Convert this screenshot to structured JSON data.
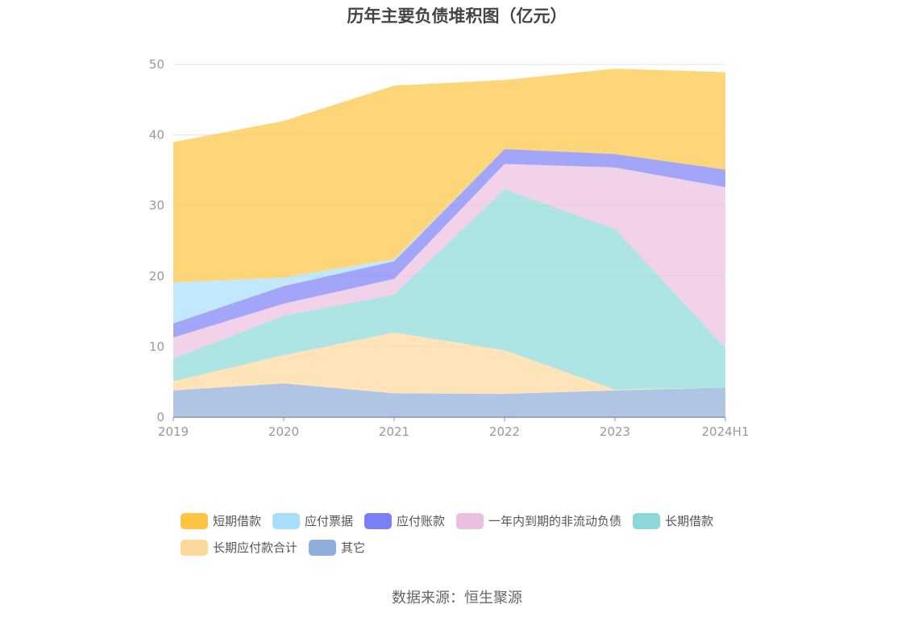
{
  "chart_data": {
    "type": "area",
    "title": "历年主要负债堆积图（亿元）",
    "categories": [
      "2019",
      "2020",
      "2021",
      "2022",
      "2023",
      "2024H1"
    ],
    "ylim": [
      0,
      50
    ],
    "yticks": [
      0,
      10,
      20,
      30,
      40,
      50
    ],
    "stacked": true,
    "grid": true,
    "legend_position": "bottom",
    "series": [
      {
        "name": "其它",
        "color": "#8eadd9",
        "values": [
          3.8,
          4.8,
          3.4,
          3.3,
          3.8,
          4.2
        ]
      },
      {
        "name": "长期应付款合计",
        "color": "#fdd89a",
        "values": [
          1.3,
          4.0,
          8.6,
          6.2,
          0.1,
          0.0
        ]
      },
      {
        "name": "长期借款",
        "color": "#8bd8d8",
        "values": [
          3.2,
          5.6,
          5.4,
          22.8,
          22.8,
          5.6
        ]
      },
      {
        "name": "一年内到期的非流动负债",
        "color": "#ebbfdf",
        "values": [
          3.0,
          1.7,
          2.2,
          3.6,
          8.7,
          22.8
        ]
      },
      {
        "name": "应付账款",
        "color": "#7b7ff5",
        "values": [
          2.0,
          2.5,
          2.5,
          2.1,
          1.9,
          2.5
        ]
      },
      {
        "name": "应付票据",
        "color": "#a8defa",
        "values": [
          5.8,
          1.2,
          0.3,
          0.0,
          0.0,
          0.0
        ]
      },
      {
        "name": "短期借款",
        "color": "#fdc441",
        "values": [
          19.9,
          22.2,
          24.6,
          9.8,
          12.1,
          13.8
        ]
      }
    ]
  },
  "legend": {
    "items": [
      {
        "label": "短期借款",
        "color": "#fdc441"
      },
      {
        "label": "应付票据",
        "color": "#a8defa"
      },
      {
        "label": "应付账款",
        "color": "#7b7ff5"
      },
      {
        "label": "一年内到期的非流动负债",
        "color": "#ebbfdf"
      },
      {
        "label": "长期借款",
        "color": "#8bd8d8"
      },
      {
        "label": "长期应付款合计",
        "color": "#fdd89a"
      },
      {
        "label": "其它",
        "color": "#8eadd9"
      }
    ]
  },
  "source": "数据来源：恒生聚源"
}
